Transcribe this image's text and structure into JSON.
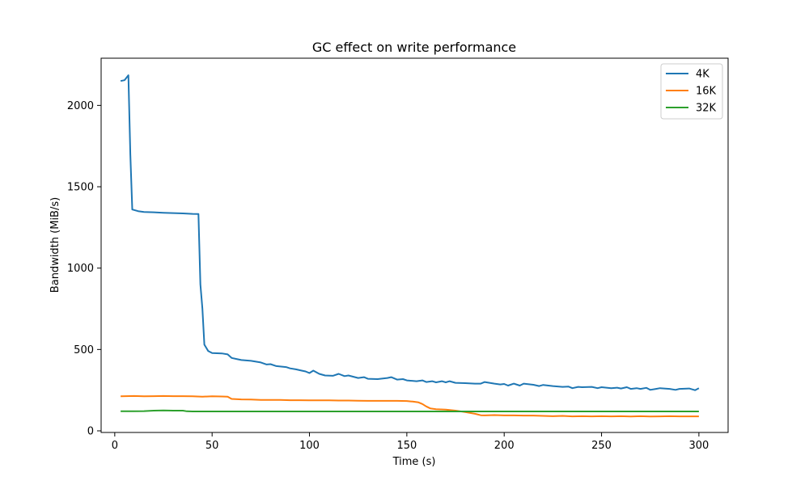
{
  "chart_data": {
    "type": "line",
    "title": "GC effect on write performance",
    "xlabel": "Time (s)",
    "ylabel": "Bandwidth (MiB/s)",
    "xlim": [
      -7,
      315
    ],
    "ylim": [
      -10,
      2290
    ],
    "xticks": [
      0,
      50,
      100,
      150,
      200,
      250,
      300
    ],
    "yticks": [
      0,
      500,
      1000,
      1500,
      2000
    ],
    "legend_position": "top-right",
    "grid": false,
    "series": [
      {
        "name": "4K",
        "color": "#1f77b4",
        "points": [
          [
            3,
            2150
          ],
          [
            5,
            2155
          ],
          [
            7,
            2185
          ],
          [
            8,
            1700
          ],
          [
            9,
            1360
          ],
          [
            12,
            1350
          ],
          [
            15,
            1345
          ],
          [
            20,
            1343
          ],
          [
            25,
            1340
          ],
          [
            30,
            1338
          ],
          [
            35,
            1336
          ],
          [
            40,
            1333
          ],
          [
            43,
            1332
          ],
          [
            44,
            900
          ],
          [
            45,
            750
          ],
          [
            46,
            530
          ],
          [
            48,
            490
          ],
          [
            50,
            478
          ],
          [
            55,
            476
          ],
          [
            58,
            470
          ],
          [
            60,
            448
          ],
          [
            63,
            440
          ],
          [
            65,
            435
          ],
          [
            70,
            430
          ],
          [
            75,
            420
          ],
          [
            78,
            408
          ],
          [
            80,
            410
          ],
          [
            83,
            398
          ],
          [
            88,
            392
          ],
          [
            90,
            384
          ],
          [
            93,
            378
          ],
          [
            96,
            370
          ],
          [
            98,
            365
          ],
          [
            100,
            355
          ],
          [
            102,
            370
          ],
          [
            105,
            350
          ],
          [
            108,
            340
          ],
          [
            112,
            338
          ],
          [
            115,
            350
          ],
          [
            118,
            336
          ],
          [
            120,
            340
          ],
          [
            125,
            325
          ],
          [
            128,
            330
          ],
          [
            130,
            320
          ],
          [
            135,
            318
          ],
          [
            140,
            325
          ],
          [
            142,
            330
          ],
          [
            145,
            315
          ],
          [
            148,
            318
          ],
          [
            150,
            310
          ],
          [
            155,
            305
          ],
          [
            158,
            310
          ],
          [
            160,
            300
          ],
          [
            163,
            305
          ],
          [
            165,
            298
          ],
          [
            168,
            305
          ],
          [
            170,
            298
          ],
          [
            172,
            305
          ],
          [
            175,
            295
          ],
          [
            180,
            293
          ],
          [
            185,
            290
          ],
          [
            188,
            290
          ],
          [
            190,
            300
          ],
          [
            195,
            290
          ],
          [
            198,
            285
          ],
          [
            200,
            288
          ],
          [
            202,
            278
          ],
          [
            205,
            290
          ],
          [
            208,
            278
          ],
          [
            210,
            290
          ],
          [
            215,
            283
          ],
          [
            218,
            275
          ],
          [
            220,
            282
          ],
          [
            225,
            275
          ],
          [
            230,
            270
          ],
          [
            233,
            272
          ],
          [
            235,
            262
          ],
          [
            238,
            270
          ],
          [
            240,
            268
          ],
          [
            245,
            270
          ],
          [
            248,
            262
          ],
          [
            250,
            268
          ],
          [
            255,
            262
          ],
          [
            258,
            265
          ],
          [
            260,
            260
          ],
          [
            263,
            268
          ],
          [
            265,
            258
          ],
          [
            268,
            262
          ],
          [
            270,
            258
          ],
          [
            273,
            264
          ],
          [
            275,
            252
          ],
          [
            278,
            258
          ],
          [
            280,
            262
          ],
          [
            285,
            258
          ],
          [
            288,
            252
          ],
          [
            290,
            258
          ],
          [
            295,
            260
          ],
          [
            298,
            250
          ],
          [
            300,
            262
          ]
        ]
      },
      {
        "name": "16K",
        "color": "#ff7f0e",
        "points": [
          [
            3,
            212
          ],
          [
            10,
            214
          ],
          [
            15,
            212
          ],
          [
            20,
            213
          ],
          [
            25,
            214
          ],
          [
            30,
            213
          ],
          [
            35,
            213
          ],
          [
            40,
            212
          ],
          [
            45,
            210
          ],
          [
            50,
            212
          ],
          [
            55,
            211
          ],
          [
            58,
            210
          ],
          [
            60,
            196
          ],
          [
            65,
            193
          ],
          [
            70,
            192
          ],
          [
            75,
            190
          ],
          [
            80,
            190
          ],
          [
            85,
            190
          ],
          [
            90,
            188
          ],
          [
            95,
            188
          ],
          [
            100,
            187
          ],
          [
            105,
            187
          ],
          [
            110,
            187
          ],
          [
            115,
            186
          ],
          [
            120,
            186
          ],
          [
            125,
            185
          ],
          [
            130,
            184
          ],
          [
            135,
            184
          ],
          [
            140,
            184
          ],
          [
            145,
            184
          ],
          [
            150,
            183
          ],
          [
            153,
            180
          ],
          [
            156,
            175
          ],
          [
            158,
            165
          ],
          [
            160,
            150
          ],
          [
            162,
            138
          ],
          [
            165,
            133
          ],
          [
            170,
            130
          ],
          [
            175,
            124
          ],
          [
            180,
            115
          ],
          [
            185,
            105
          ],
          [
            188,
            96
          ],
          [
            190,
            95
          ],
          [
            195,
            97
          ],
          [
            200,
            95
          ],
          [
            205,
            95
          ],
          [
            210,
            94
          ],
          [
            215,
            94
          ],
          [
            220,
            92
          ],
          [
            225,
            90
          ],
          [
            230,
            92
          ],
          [
            235,
            89
          ],
          [
            240,
            90
          ],
          [
            245,
            89
          ],
          [
            250,
            90
          ],
          [
            255,
            89
          ],
          [
            260,
            90
          ],
          [
            265,
            88
          ],
          [
            270,
            90
          ],
          [
            275,
            88
          ],
          [
            280,
            89
          ],
          [
            285,
            90
          ],
          [
            290,
            89
          ],
          [
            295,
            89
          ],
          [
            300,
            89
          ]
        ]
      },
      {
        "name": "32K",
        "color": "#2ca02c",
        "points": [
          [
            3,
            120
          ],
          [
            10,
            120
          ],
          [
            15,
            121
          ],
          [
            20,
            124
          ],
          [
            25,
            125
          ],
          [
            30,
            124
          ],
          [
            35,
            124
          ],
          [
            37,
            120
          ],
          [
            40,
            119
          ],
          [
            50,
            119
          ],
          [
            60,
            119
          ],
          [
            80,
            119
          ],
          [
            100,
            119
          ],
          [
            120,
            119
          ],
          [
            140,
            119
          ],
          [
            160,
            119
          ],
          [
            180,
            119
          ],
          [
            200,
            119
          ],
          [
            220,
            119
          ],
          [
            240,
            119
          ],
          [
            260,
            119
          ],
          [
            280,
            119
          ],
          [
            300,
            119
          ]
        ]
      }
    ]
  }
}
